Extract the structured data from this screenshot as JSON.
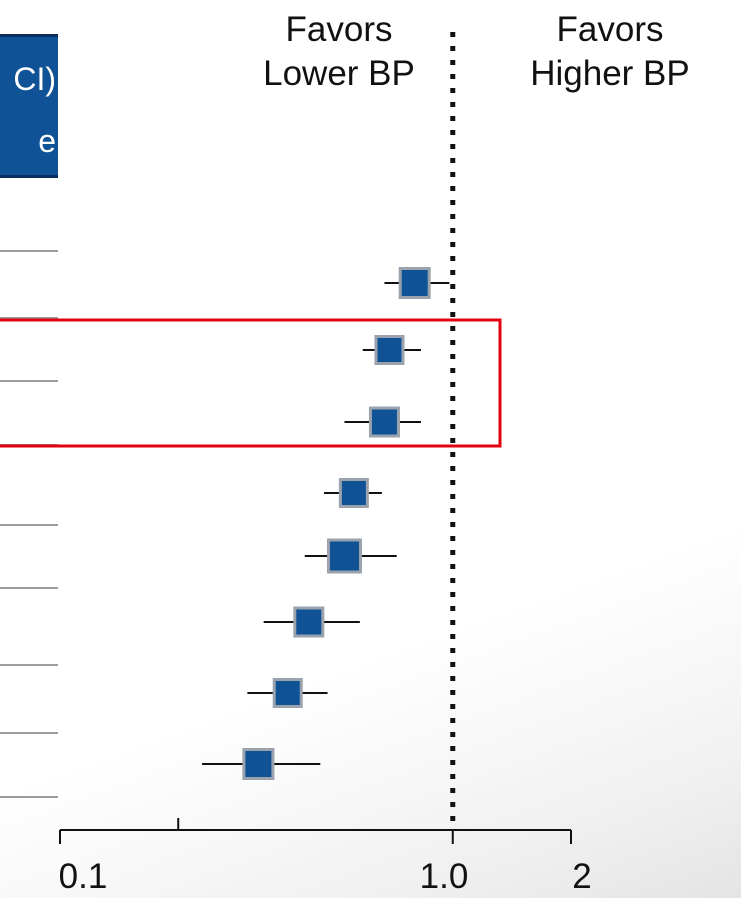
{
  "header": {
    "line1": "CI)",
    "line2": "e"
  },
  "annotations": {
    "favors_lower_line1": "Favors",
    "favors_lower_line2": "Lower BP",
    "favors_higher_line1": "Favors",
    "favors_higher_line2": "Higher BP"
  },
  "colors": {
    "marker_fill": "#0f5296",
    "marker_border": "#9aa3ad",
    "highlight_box": "#e3000f",
    "header_fill": "#0f5296"
  },
  "chart_data": {
    "type": "scatter",
    "subtype": "forest-plot",
    "x_scale": "log",
    "xlim": [
      0.1,
      2
    ],
    "reference_value": 1.0,
    "xtick_labels": [
      "0.1",
      "1.0",
      "2"
    ],
    "minor_ticks": [
      0.2
    ],
    "rows": [
      {
        "estimate": 0.8,
        "ci": [
          0.67,
          0.98
        ],
        "highlighted": false
      },
      {
        "estimate": 0.69,
        "ci": [
          0.59,
          0.83
        ],
        "highlighted": true
      },
      {
        "estimate": 0.67,
        "ci": [
          0.53,
          0.83
        ],
        "highlighted": true
      },
      {
        "estimate": 0.56,
        "ci": [
          0.47,
          0.66
        ],
        "highlighted": false
      },
      {
        "estimate": 0.53,
        "ci": [
          0.42,
          0.72
        ],
        "highlighted": false
      },
      {
        "estimate": 0.43,
        "ci": [
          0.33,
          0.58
        ],
        "highlighted": false
      },
      {
        "estimate": 0.38,
        "ci": [
          0.3,
          0.48
        ],
        "highlighted": false
      },
      {
        "estimate": 0.32,
        "ci": [
          0.23,
          0.46
        ],
        "highlighted": false
      }
    ]
  }
}
